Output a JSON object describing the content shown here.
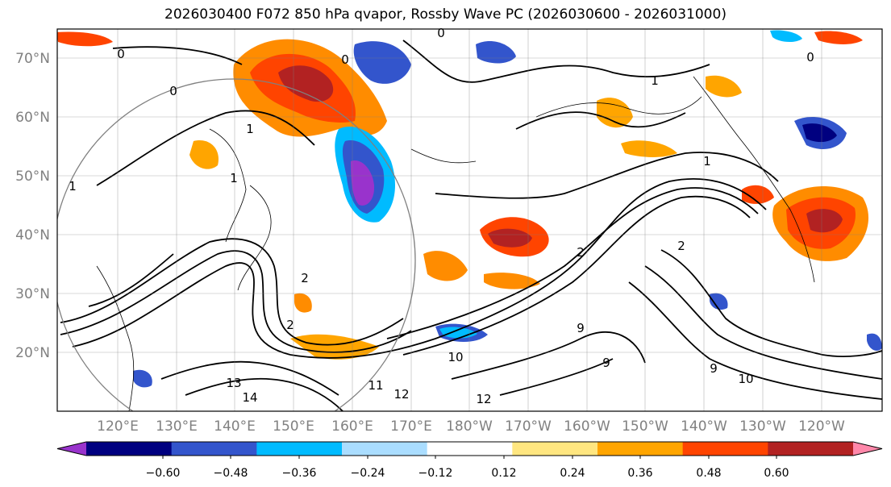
{
  "title": "2026030400 F072 850 hPa qvapor, Rossby Wave PC (2026030600 - 2026031000)",
  "map": {
    "lat_ticks": [
      "70°N",
      "60°N",
      "50°N",
      "40°N",
      "30°N",
      "20°N"
    ],
    "lon_ticks": [
      "120°E",
      "130°E",
      "140°E",
      "150°E",
      "160°E",
      "170°E",
      "180°W",
      "170°W",
      "160°W",
      "150°W",
      "140°W",
      "130°W",
      "120°W"
    ],
    "contour_labels": [
      "0",
      "0",
      "0",
      "0",
      "0",
      "1",
      "1",
      "1",
      "1",
      "1",
      "2",
      "2",
      "2",
      "2",
      "9",
      "9",
      "10",
      "10",
      "11",
      "12",
      "13",
      "14",
      "12",
      "9"
    ]
  },
  "colorbar": {
    "ticks": [
      "−0.60",
      "−0.48",
      "−0.36",
      "−0.24",
      "−0.12",
      "0.12",
      "0.24",
      "0.36",
      "0.48",
      "0.60"
    ],
    "colors": [
      "#9933cc",
      "#000080",
      "#3355cc",
      "#00bbff",
      "#aaddff",
      "#ffffff",
      "#ffe680",
      "#ffa500",
      "#ff4400",
      "#b22222",
      "#ff88aa"
    ]
  }
}
